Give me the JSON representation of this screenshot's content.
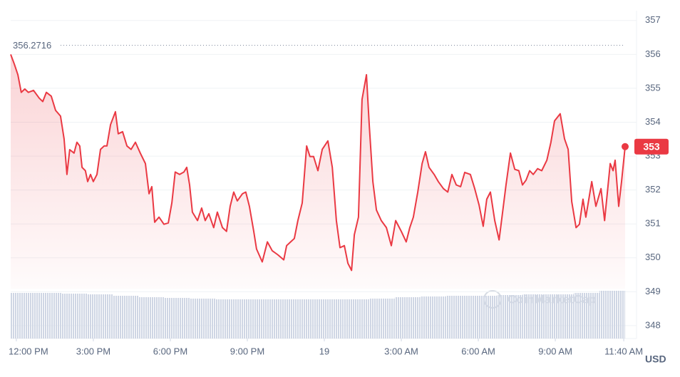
{
  "chart_data": {
    "type": "line",
    "currency": "USD",
    "watermark": "CoinMarketCap",
    "high": 356.2716,
    "current_label": "353",
    "color": "#ea3943",
    "xlim": [
      -0.22,
      23.72
    ],
    "ylim": [
      347.62,
      357.29
    ],
    "grid": true,
    "xticks": [
      {
        "value": 0,
        "label": "12:00 PM"
      },
      {
        "value": 3,
        "label": "3:00 PM"
      },
      {
        "value": 6,
        "label": "6:00 PM"
      },
      {
        "value": 9,
        "label": "9:00 PM"
      },
      {
        "value": 12,
        "label": "19"
      },
      {
        "value": 15,
        "label": "3:00 AM"
      },
      {
        "value": 18,
        "label": "6:00 AM"
      },
      {
        "value": 21,
        "label": "9:00 AM"
      },
      {
        "value": 23.667,
        "label": "11:40 AM"
      }
    ],
    "yticks": [
      348,
      349,
      350,
      351,
      352,
      353,
      354,
      355,
      356,
      357
    ],
    "x": [
      -0.22,
      -0.08,
      0.06,
      0.19,
      0.33,
      0.47,
      0.67,
      0.89,
      1.03,
      1.17,
      1.36,
      1.53,
      1.72,
      1.86,
      1.97,
      2.08,
      2.25,
      2.36,
      2.47,
      2.56,
      2.69,
      2.78,
      2.89,
      3.0,
      3.14,
      3.28,
      3.42,
      3.53,
      3.67,
      3.86,
      3.97,
      4.14,
      4.31,
      4.47,
      4.64,
      4.83,
      5.03,
      5.17,
      5.28,
      5.39,
      5.56,
      5.75,
      5.92,
      6.06,
      6.19,
      6.36,
      6.53,
      6.64,
      6.75,
      6.86,
      7.06,
      7.22,
      7.36,
      7.5,
      7.69,
      7.83,
      8.03,
      8.19,
      8.33,
      8.47,
      8.61,
      8.81,
      8.94,
      9.08,
      9.25,
      9.36,
      9.58,
      9.78,
      9.97,
      10.19,
      10.42,
      10.53,
      10.69,
      10.83,
      10.97,
      11.14,
      11.31,
      11.44,
      11.58,
      11.75,
      11.92,
      12.14,
      12.31,
      12.47,
      12.61,
      12.78,
      12.92,
      13.06,
      13.17,
      13.33,
      13.47,
      13.64,
      13.75,
      13.89,
      14.03,
      14.22,
      14.42,
      14.61,
      14.78,
      15.0,
      15.19,
      15.33,
      15.47,
      15.64,
      15.81,
      15.94,
      16.08,
      16.28,
      16.44,
      16.64,
      16.81,
      16.97,
      17.14,
      17.31,
      17.47,
      17.69,
      17.86,
      18.03,
      18.19,
      18.33,
      18.47,
      18.64,
      18.81,
      18.94,
      19.08,
      19.25,
      19.42,
      19.58,
      19.72,
      19.86,
      20.0,
      20.14,
      20.31,
      20.47,
      20.67,
      20.83,
      20.97,
      21.19,
      21.36,
      21.5,
      21.64,
      21.81,
      21.94,
      22.08,
      22.19,
      22.42,
      22.58,
      22.78,
      22.92,
      23.14,
      23.25,
      23.33,
      23.47,
      23.58,
      23.72
    ],
    "series": [
      {
        "name": "Price",
        "color": "#ea3943",
        "values": [
          356.0,
          355.72,
          355.4,
          354.88,
          354.98,
          354.88,
          354.94,
          354.71,
          354.61,
          354.88,
          354.77,
          354.35,
          354.18,
          353.51,
          352.46,
          353.19,
          353.09,
          353.41,
          353.3,
          352.67,
          352.57,
          352.25,
          352.46,
          352.25,
          352.46,
          353.2,
          353.3,
          353.3,
          353.93,
          354.31,
          353.66,
          353.72,
          353.3,
          353.2,
          353.41,
          353.09,
          352.78,
          351.89,
          352.1,
          351.05,
          351.2,
          350.99,
          351.03,
          351.62,
          352.53,
          352.46,
          352.53,
          352.67,
          352.15,
          351.35,
          351.1,
          351.47,
          351.1,
          351.3,
          350.89,
          351.35,
          350.89,
          350.78,
          351.52,
          351.94,
          351.68,
          351.89,
          351.94,
          351.52,
          350.78,
          350.26,
          349.88,
          350.47,
          350.21,
          350.09,
          349.94,
          350.36,
          350.47,
          350.57,
          351.1,
          351.62,
          353.3,
          352.99,
          352.99,
          352.57,
          353.2,
          353.45,
          352.67,
          351.1,
          350.3,
          350.36,
          349.84,
          349.63,
          350.68,
          351.2,
          354.67,
          355.4,
          353.93,
          352.25,
          351.41,
          351.1,
          350.89,
          350.36,
          351.1,
          350.78,
          350.47,
          350.89,
          351.2,
          351.94,
          352.78,
          353.13,
          352.67,
          352.46,
          352.25,
          352.04,
          351.94,
          352.46,
          352.15,
          352.1,
          352.52,
          352.46,
          352.04,
          351.56,
          350.93,
          351.73,
          351.94,
          351.1,
          350.53,
          351.31,
          352.15,
          353.09,
          352.61,
          352.57,
          352.15,
          352.29,
          352.57,
          352.46,
          352.63,
          352.57,
          352.88,
          353.41,
          354.04,
          354.25,
          353.51,
          353.2,
          351.66,
          350.89,
          350.99,
          351.73,
          351.2,
          352.25,
          351.52,
          352.04,
          351.1,
          352.78,
          352.57,
          352.88,
          351.52,
          352.25,
          353.28
        ]
      }
    ],
    "volume": {
      "color": "#cfd6e4",
      "ylim": [
        0,
        100
      ],
      "values": [
        64,
        64,
        63,
        62,
        60,
        58,
        57,
        56,
        55,
        55,
        55,
        55,
        55,
        55,
        56,
        58,
        59,
        60,
        60,
        61,
        62,
        62,
        64,
        67
      ]
    }
  }
}
